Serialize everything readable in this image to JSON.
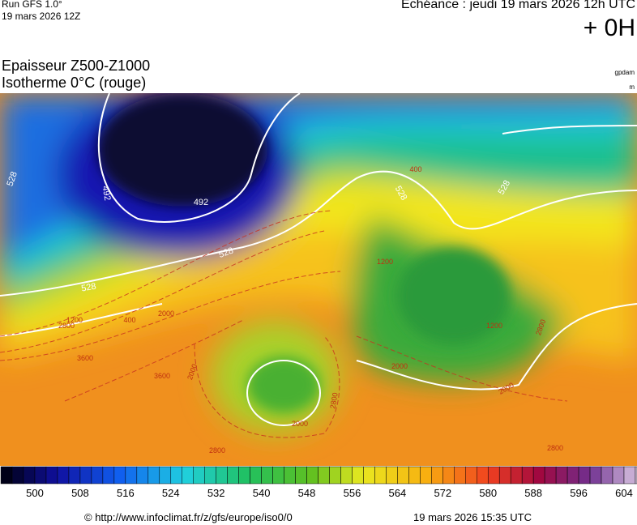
{
  "header": {
    "run": "Run GFS 1.0°",
    "run_date": "19 mars 2026 12Z",
    "valid": "Echéance : jeudi 19 mars 2026 12h UTC",
    "lead": "+ 0H"
  },
  "title": {
    "line1": "Epaisseur Z500-Z1000",
    "line2": "Isotherme 0°C (rouge)",
    "unit1": "gpdam",
    "unit2": "m"
  },
  "contour_labels": {
    "thickness": [
      "528",
      "492",
      "492",
      "528",
      "528",
      "528",
      "528"
    ],
    "freezing_level": [
      "2800",
      "1200",
      "400",
      "2000",
      "3600",
      "3600",
      "2800",
      "2000",
      "2000",
      "1200",
      "400",
      "1200",
      "2000",
      "2800",
      "2000",
      "2800",
      "2800"
    ]
  },
  "colorbar": {
    "ticks": [
      500,
      508,
      516,
      524,
      532,
      540,
      548,
      556,
      564,
      572,
      580,
      588,
      596,
      604
    ]
  },
  "footer": {
    "url": "© http://www.infoclimat.fr/z/gfs/europe/iso0/0",
    "generated": "19 mars 2026 15:35 UTC"
  }
}
